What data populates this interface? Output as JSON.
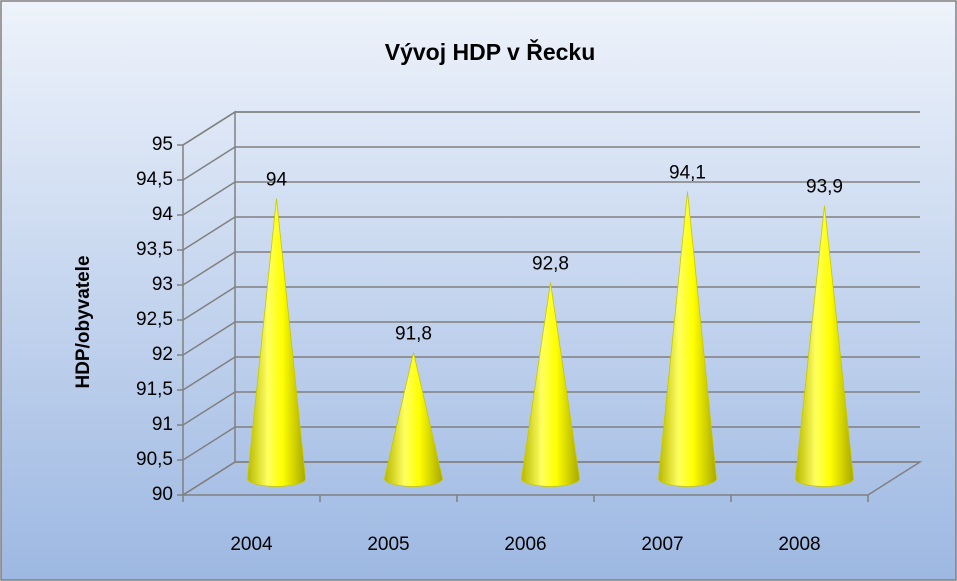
{
  "chart_data": {
    "type": "cone",
    "title": "Vývoj HDP v Řecku",
    "y_label": "HDP/obyvatele",
    "categories": [
      "2004",
      "2005",
      "2006",
      "2007",
      "2008"
    ],
    "values": [
      94,
      91.8,
      92.8,
      94.1,
      93.9
    ],
    "value_labels": [
      "94",
      "91,8",
      "92,8",
      "94,1",
      "93,9"
    ],
    "color": "#ffff00",
    "ylim": [
      90,
      95
    ],
    "yticks": [
      90,
      {
        "value": 90.5,
        "label": "90,5"
      },
      91,
      {
        "value": 91.5,
        "label": "91,5"
      },
      92,
      {
        "value": 92.5,
        "label": "92,5"
      },
      93,
      {
        "value": 93.5,
        "label": "93,5"
      },
      94,
      {
        "value": 94.5,
        "label": "94,5"
      },
      95
    ],
    "grid": true
  }
}
